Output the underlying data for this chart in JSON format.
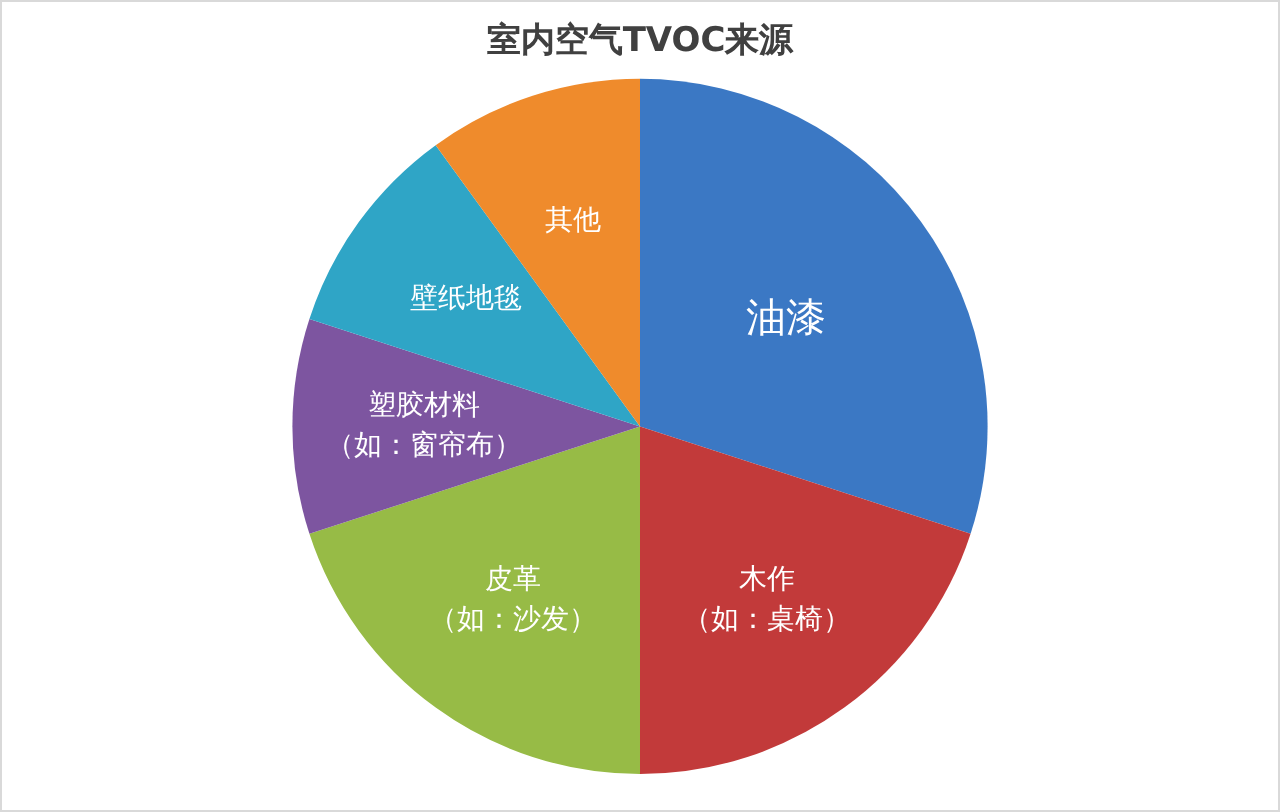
{
  "chart_data": {
    "type": "pie",
    "title": "室内空气TVOC来源",
    "categories": [
      "油漆",
      "木作（如：桌椅）",
      "皮革（如：沙发）",
      "塑胶材料（如：窗帘布）",
      "壁纸地毯",
      "其他"
    ],
    "values": [
      30,
      20,
      20,
      10,
      10,
      10
    ],
    "colors": [
      "#3b78c4",
      "#c23a3a",
      "#97bb46",
      "#7d55a0",
      "#2fa5c6",
      "#ef8b2c"
    ],
    "legend": false
  }
}
